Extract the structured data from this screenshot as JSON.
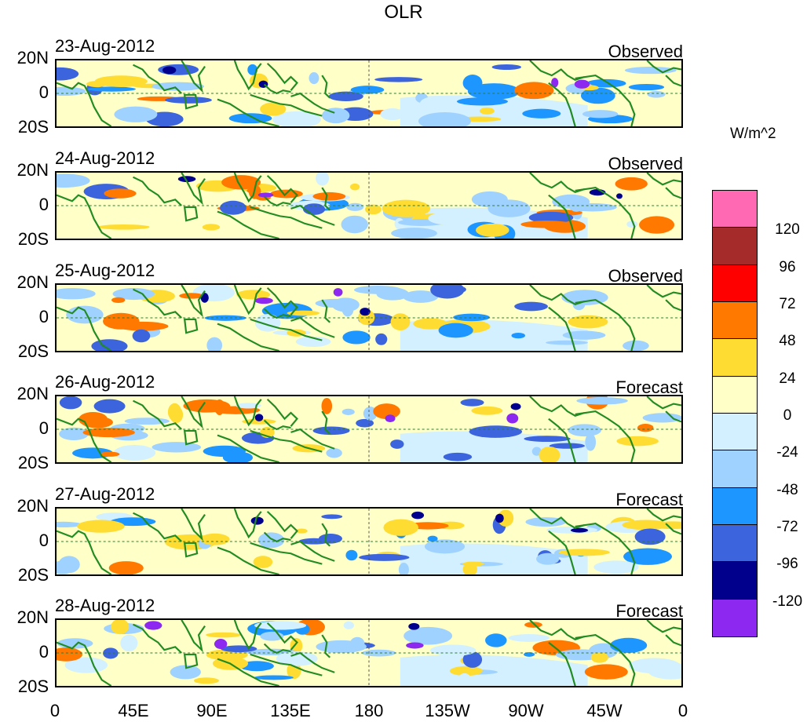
{
  "title": "OLR",
  "units": "W/m^2",
  "lat_labels": [
    "20N",
    "0",
    "20S"
  ],
  "lon_labels": [
    "0",
    "45E",
    "90E",
    "135E",
    "180",
    "135W",
    "90W",
    "45W",
    "0"
  ],
  "panels": [
    {
      "date": "23-Aug-2012",
      "status": "Observed",
      "seed": 3
    },
    {
      "date": "24-Aug-2012",
      "status": "Observed",
      "seed": 7
    },
    {
      "date": "25-Aug-2012",
      "status": "Observed",
      "seed": 11
    },
    {
      "date": "26-Aug-2012",
      "status": "Forecast",
      "seed": 19
    },
    {
      "date": "27-Aug-2012",
      "status": "Forecast",
      "seed": 23
    },
    {
      "date": "28-Aug-2012",
      "status": "Forecast",
      "seed": 31
    }
  ],
  "colorbar": {
    "labels": [
      "120",
      "96",
      "72",
      "48",
      "24",
      "0",
      "-24",
      "-48",
      "-72",
      "-96",
      "-120"
    ],
    "colors": [
      "#ff69b4",
      "#a52a2a",
      "#ff0000",
      "#ff7800",
      "#ffdc32",
      "#ffffc8",
      "#d2f0ff",
      "#a0d2ff",
      "#1e96ff",
      "#3c64dc",
      "#00008c",
      "#8c28f0"
    ]
  },
  "colors": {
    "land": "#228b22",
    "fill_default": "#ffffc8"
  }
}
